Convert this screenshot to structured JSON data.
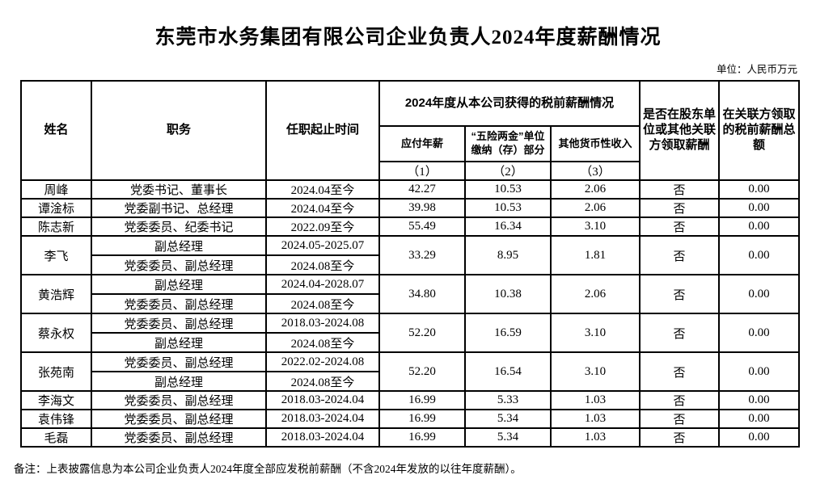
{
  "page": {
    "title": "东莞市水务集团有限公司企业负责人2024年度薪酬情况",
    "unit_note": "单位：人民币万元",
    "footnote": "备注：上表披露信息为本公司企业负责人2024年度全部应发税前薪酬（不含2024年发放的以往年度薪酬）。"
  },
  "table": {
    "header": {
      "name": "姓名",
      "position": "职务",
      "term": "任职起止时间",
      "salary_group": "2024年度从本公司获得的税前薪酬情况",
      "salary_cols": [
        "应付年薪",
        "“五险两金”单位缴纳（存）部分",
        "其他货币性收入"
      ],
      "salary_col_nums": [
        "（1）",
        "（2）",
        "（3）"
      ],
      "related_party_question": "是否在股东单位或其他关联方领取薪酬",
      "related_party_total": "在关联方领取的税前薪酬总额"
    },
    "rows": [
      {
        "name": "周峰",
        "entries": [
          {
            "position": "党委书记、董事长",
            "term": "2024.04至今"
          }
        ],
        "annual_salary": "42.27",
        "insurance_contribution": "10.53",
        "other_income": "2.06",
        "related_party": "否",
        "related_total": "0.00"
      },
      {
        "name": "谭淦标",
        "entries": [
          {
            "position": "党委副书记、总经理",
            "term": "2024.04至今"
          }
        ],
        "annual_salary": "39.98",
        "insurance_contribution": "10.53",
        "other_income": "2.06",
        "related_party": "否",
        "related_total": "0.00"
      },
      {
        "name": "陈志新",
        "entries": [
          {
            "position": "党委委员、纪委书记",
            "term": "2022.09至今"
          }
        ],
        "annual_salary": "55.49",
        "insurance_contribution": "16.34",
        "other_income": "3.10",
        "related_party": "否",
        "related_total": "0.00"
      },
      {
        "name": "李飞",
        "entries": [
          {
            "position": "副总经理",
            "term": "2024.05-2025.07"
          },
          {
            "position": "党委委员、副总经理",
            "term": "2024.08至今"
          }
        ],
        "annual_salary": "33.29",
        "insurance_contribution": "8.95",
        "other_income": "1.81",
        "related_party": "否",
        "related_total": "0.00"
      },
      {
        "name": "黄浩辉",
        "entries": [
          {
            "position": "副总经理",
            "term": "2024.04-2028.07"
          },
          {
            "position": "党委委员、副总经理",
            "term": "2024.08至今"
          }
        ],
        "annual_salary": "34.80",
        "insurance_contribution": "10.38",
        "other_income": "2.06",
        "related_party": "否",
        "related_total": "0.00"
      },
      {
        "name": "蔡永权",
        "entries": [
          {
            "position": "党委委员、副总经理",
            "term": "2018.03-2024.08"
          },
          {
            "position": "副总经理",
            "term": "2024.08至今"
          }
        ],
        "annual_salary": "52.20",
        "insurance_contribution": "16.59",
        "other_income": "3.10",
        "related_party": "否",
        "related_total": "0.00"
      },
      {
        "name": "张苑南",
        "entries": [
          {
            "position": "党委委员、副总经理",
            "term": "2022.02-2024.08"
          },
          {
            "position": "副总经理",
            "term": "2024.08至今"
          }
        ],
        "annual_salary": "52.20",
        "insurance_contribution": "16.54",
        "other_income": "3.10",
        "related_party": "否",
        "related_total": "0.00"
      },
      {
        "name": "李海文",
        "entries": [
          {
            "position": "党委委员、副总经理",
            "term": "2018.03-2024.04"
          }
        ],
        "annual_salary": "16.99",
        "insurance_contribution": "5.33",
        "other_income": "1.03",
        "related_party": "否",
        "related_total": "0.00"
      },
      {
        "name": "袁伟锋",
        "entries": [
          {
            "position": "党委委员、副总经理",
            "term": "2018.03-2024.04"
          }
        ],
        "annual_salary": "16.99",
        "insurance_contribution": "5.34",
        "other_income": "1.03",
        "related_party": "否",
        "related_total": "0.00"
      },
      {
        "name": "毛磊",
        "entries": [
          {
            "position": "党委委员、副总经理",
            "term": "2018.03-2024.04"
          }
        ],
        "annual_salary": "16.99",
        "insurance_contribution": "5.34",
        "other_income": "1.03",
        "related_party": "否",
        "related_total": "0.00"
      }
    ]
  }
}
